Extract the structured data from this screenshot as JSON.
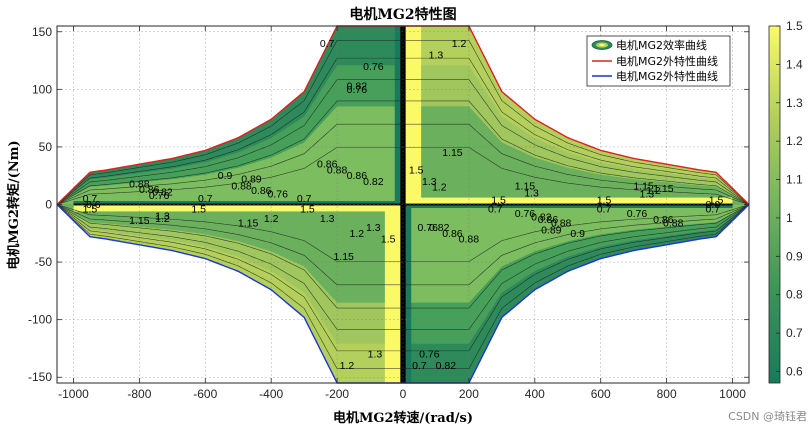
{
  "chart_data": {
    "type": "contour",
    "title": "电机MG2特性图",
    "xlabel": "电机MG2转速/(rad/s)",
    "ylabel": "电机MG2转矩/(Nm)",
    "xlim": [
      -1050,
      1050
    ],
    "ylim": [
      -155,
      155
    ],
    "xticks": [
      -1000,
      -800,
      -600,
      -400,
      -200,
      0,
      200,
      400,
      600,
      800,
      1000
    ],
    "yticks": [
      -150,
      -100,
      -50,
      0,
      50,
      100,
      150
    ],
    "grid": true,
    "legend": {
      "position": "top-right",
      "entries": [
        {
          "label": "电机MG2效率曲线",
          "color": "#2e8b57"
        },
        {
          "label": "电机MG2外特性曲线",
          "color": "#e0201c"
        },
        {
          "label": "电机MG2外特性曲线",
          "color": "#1c35d6"
        }
      ]
    },
    "colorbar": {
      "range": [
        0.57,
        1.5
      ],
      "ticks": [
        0.6,
        0.7,
        0.8,
        0.9,
        1.0,
        1.1,
        1.2,
        1.3,
        1.4,
        1.5
      ],
      "colors": [
        "#197a5c",
        "#3a9358",
        "#74b45d",
        "#b4d05c",
        "#fafa69"
      ]
    },
    "envelope": {
      "speed": [
        0,
        200,
        300,
        400,
        500,
        600,
        700,
        800,
        900,
        950,
        1050
      ],
      "torque": [
        155,
        155,
        98,
        74,
        58,
        47,
        40,
        35,
        30,
        28,
        0
      ]
    },
    "efficiency_levels": [
      0.6,
      0.7,
      0.76,
      0.82,
      0.86,
      0.88,
      0.89,
      0.9,
      1.15,
      1.2,
      1.3,
      1.5
    ],
    "contour_labels": [
      {
        "text": "0.7",
        "x": -230,
        "y": 140
      },
      {
        "text": "0.76",
        "x": -90,
        "y": 120
      },
      {
        "text": "0.82",
        "x": -140,
        "y": 103
      },
      {
        "text": "0.76",
        "x": -140,
        "y": 100
      },
      {
        "text": "0.88",
        "x": -200,
        "y": 30
      },
      {
        "text": "0.86",
        "x": -140,
        "y": 25
      },
      {
        "text": "0.82",
        "x": -90,
        "y": 20
      },
      {
        "text": "0.86",
        "x": -230,
        "y": 35
      },
      {
        "text": "0.9",
        "x": -540,
        "y": 25
      },
      {
        "text": "0.89",
        "x": -460,
        "y": 22
      },
      {
        "text": "0.88",
        "x": -800,
        "y": 18
      },
      {
        "text": "0.88",
        "x": -490,
        "y": 16
      },
      {
        "text": "0.86",
        "x": -770,
        "y": 13
      },
      {
        "text": "0.82",
        "x": -730,
        "y": 11
      },
      {
        "text": "0.76",
        "x": -740,
        "y": 8
      },
      {
        "text": "0.86",
        "x": -430,
        "y": 12
      },
      {
        "text": "0.76",
        "x": -380,
        "y": 9
      },
      {
        "text": "0.7",
        "x": -950,
        "y": 5
      },
      {
        "text": "0.7",
        "x": -600,
        "y": 5
      },
      {
        "text": "0.7",
        "x": -300,
        "y": 5
      },
      {
        "text": "0.6",
        "x": -940,
        "y": 0
      },
      {
        "text": "1.5",
        "x": -950,
        "y": -4
      },
      {
        "text": "1.5",
        "x": -620,
        "y": -4
      },
      {
        "text": "1.5",
        "x": -290,
        "y": -4
      },
      {
        "text": "1.3",
        "x": -730,
        "y": -10
      },
      {
        "text": "1.2",
        "x": -730,
        "y": -12
      },
      {
        "text": "1.15",
        "x": -800,
        "y": -14
      },
      {
        "text": "1.15",
        "x": -470,
        "y": -16
      },
      {
        "text": "1.2",
        "x": -400,
        "y": -12
      },
      {
        "text": "1.3",
        "x": -230,
        "y": -12
      },
      {
        "text": "1.3",
        "x": -90,
        "y": -20
      },
      {
        "text": "1.2",
        "x": -140,
        "y": -25
      },
      {
        "text": "1.5",
        "x": -45,
        "y": -30
      },
      {
        "text": "1.15",
        "x": -180,
        "y": -45
      },
      {
        "text": "1.2",
        "x": -170,
        "y": -140
      },
      {
        "text": "1.3",
        "x": -85,
        "y": -130
      },
      {
        "text": "1.3",
        "x": 100,
        "y": 130
      },
      {
        "text": "1.2",
        "x": 170,
        "y": 140
      },
      {
        "text": "1.15",
        "x": 150,
        "y": 45
      },
      {
        "text": "1.5",
        "x": 40,
        "y": 30
      },
      {
        "text": "1.3",
        "x": 80,
        "y": 20
      },
      {
        "text": "1.2",
        "x": 110,
        "y": 15
      },
      {
        "text": "1.15",
        "x": 370,
        "y": 16
      },
      {
        "text": "1.15",
        "x": 730,
        "y": 16
      },
      {
        "text": "1.15",
        "x": 790,
        "y": 14
      },
      {
        "text": "1.3",
        "x": 740,
        "y": 9
      },
      {
        "text": "1.2",
        "x": 760,
        "y": 12
      },
      {
        "text": "1.3",
        "x": 390,
        "y": 10
      },
      {
        "text": "1.5",
        "x": 290,
        "y": 4
      },
      {
        "text": "1.5",
        "x": 610,
        "y": 4
      },
      {
        "text": "1.5",
        "x": 950,
        "y": 4
      },
      {
        "text": "0.6",
        "x": 940,
        "y": 0
      },
      {
        "text": "0.7",
        "x": 280,
        "y": -4
      },
      {
        "text": "0.7",
        "x": 610,
        "y": -4
      },
      {
        "text": "0.7",
        "x": 940,
        "y": -4
      },
      {
        "text": "0.76",
        "x": 370,
        "y": -8
      },
      {
        "text": "0.76",
        "x": 710,
        "y": -8
      },
      {
        "text": "0.82",
        "x": 420,
        "y": -11
      },
      {
        "text": "0.86",
        "x": 440,
        "y": -13
      },
      {
        "text": "0.86",
        "x": 790,
        "y": -13
      },
      {
        "text": "0.88",
        "x": 480,
        "y": -16
      },
      {
        "text": "0.88",
        "x": 820,
        "y": -16
      },
      {
        "text": "0.89",
        "x": 450,
        "y": -22
      },
      {
        "text": "0.9",
        "x": 530,
        "y": -25
      },
      {
        "text": "0.76",
        "x": 75,
        "y": -20
      },
      {
        "text": "0.82",
        "x": 110,
        "y": -20
      },
      {
        "text": "0.86",
        "x": 150,
        "y": -25
      },
      {
        "text": "0.88",
        "x": 200,
        "y": -30
      },
      {
        "text": "0.76",
        "x": 80,
        "y": -130
      },
      {
        "text": "0.82",
        "x": 130,
        "y": -140
      },
      {
        "text": "0.7",
        "x": 50,
        "y": -140
      }
    ],
    "watermark": "CSDN @琦钰君"
  }
}
